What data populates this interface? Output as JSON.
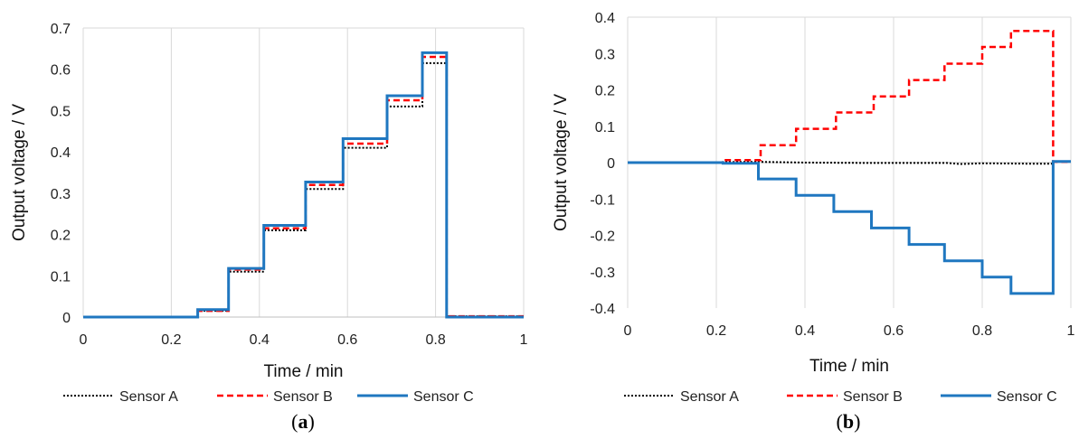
{
  "chart_data": [
    {
      "type": "line",
      "panel_label": "a",
      "xlabel": "Time  / min",
      "ylabel": "Output voltage  / V",
      "xlim": [
        0,
        1
      ],
      "ylim": [
        0,
        0.7
      ],
      "x_ticks": [
        "0",
        "0.2",
        "0.4",
        "0.6",
        "0.8",
        "1"
      ],
      "y_ticks": [
        "0",
        "0.1",
        "0.2",
        "0.3",
        "0.4",
        "0.5",
        "0.6",
        "0.7"
      ],
      "grid": "vertical",
      "legend_position": "bottom",
      "series": [
        {
          "name": "Sensor A",
          "color": "#000000",
          "style": "dotted",
          "points": [
            [
              0,
              0
            ],
            [
              0.26,
              0
            ],
            [
              0.26,
              0.015
            ],
            [
              0.33,
              0.015
            ],
            [
              0.33,
              0.11
            ],
            [
              0.41,
              0.11
            ],
            [
              0.41,
              0.21
            ],
            [
              0.505,
              0.21
            ],
            [
              0.505,
              0.31
            ],
            [
              0.59,
              0.31
            ],
            [
              0.59,
              0.41
            ],
            [
              0.69,
              0.41
            ],
            [
              0.69,
              0.51
            ],
            [
              0.77,
              0.51
            ],
            [
              0.77,
              0.615
            ],
            [
              0.825,
              0.615
            ],
            [
              0.825,
              0.002
            ],
            [
              1,
              0.002
            ]
          ]
        },
        {
          "name": "Sensor B",
          "color": "#ff0000",
          "style": "dashed",
          "points": [
            [
              0,
              0
            ],
            [
              0.26,
              0
            ],
            [
              0.26,
              0.015
            ],
            [
              0.33,
              0.015
            ],
            [
              0.33,
              0.115
            ],
            [
              0.41,
              0.115
            ],
            [
              0.41,
              0.215
            ],
            [
              0.505,
              0.215
            ],
            [
              0.505,
              0.32
            ],
            [
              0.59,
              0.32
            ],
            [
              0.59,
              0.42
            ],
            [
              0.69,
              0.42
            ],
            [
              0.69,
              0.525
            ],
            [
              0.77,
              0.525
            ],
            [
              0.77,
              0.63
            ],
            [
              0.825,
              0.63
            ],
            [
              0.825,
              0.002
            ],
            [
              1,
              0.002
            ]
          ]
        },
        {
          "name": "Sensor C",
          "color": "#1f77c0",
          "style": "solid",
          "points": [
            [
              0,
              0
            ],
            [
              0.26,
              0
            ],
            [
              0.26,
              0.018
            ],
            [
              0.33,
              0.018
            ],
            [
              0.33,
              0.118
            ],
            [
              0.41,
              0.118
            ],
            [
              0.41,
              0.222
            ],
            [
              0.505,
              0.222
            ],
            [
              0.505,
              0.327
            ],
            [
              0.59,
              0.327
            ],
            [
              0.59,
              0.432
            ],
            [
              0.69,
              0.432
            ],
            [
              0.69,
              0.536
            ],
            [
              0.77,
              0.536
            ],
            [
              0.77,
              0.64
            ],
            [
              0.825,
              0.64
            ],
            [
              0.825,
              0
            ],
            [
              1,
              0
            ]
          ]
        }
      ]
    },
    {
      "type": "line",
      "panel_label": "b",
      "xlabel": "Time / min",
      "ylabel": "Output voltage / V",
      "xlim": [
        0,
        1
      ],
      "ylim": [
        -0.4,
        0.4
      ],
      "x_ticks": [
        "0",
        "0.2",
        "0.4",
        "0.6",
        "0.8",
        "1"
      ],
      "y_ticks": [
        "0.4",
        "0.3",
        "0.2",
        "0.1",
        "0",
        "-0.1",
        "-0.2",
        "-0.3",
        "-0.4"
      ],
      "grid": "vertical",
      "legend_position": "bottom",
      "series": [
        {
          "name": "Sensor A",
          "color": "#000000",
          "style": "dotted",
          "points": [
            [
              0,
              0
            ],
            [
              0.3,
              0.002
            ],
            [
              0.4,
              0
            ],
            [
              0.55,
              -0.001
            ],
            [
              0.72,
              -0.001
            ],
            [
              0.75,
              -0.004
            ],
            [
              0.8,
              -0.002
            ],
            [
              0.9,
              -0.003
            ],
            [
              0.96,
              -0.003
            ]
          ]
        },
        {
          "name": "Sensor B",
          "color": "#ff0000",
          "style": "dashed",
          "points": [
            [
              0,
              0
            ],
            [
              0.215,
              0
            ],
            [
              0.215,
              0.007
            ],
            [
              0.3,
              0.007
            ],
            [
              0.3,
              0.048
            ],
            [
              0.38,
              0.048
            ],
            [
              0.38,
              0.093
            ],
            [
              0.47,
              0.093
            ],
            [
              0.47,
              0.138
            ],
            [
              0.555,
              0.138
            ],
            [
              0.555,
              0.182
            ],
            [
              0.635,
              0.182
            ],
            [
              0.635,
              0.227
            ],
            [
              0.715,
              0.227
            ],
            [
              0.715,
              0.272
            ],
            [
              0.8,
              0.272
            ],
            [
              0.8,
              0.318
            ],
            [
              0.865,
              0.318
            ],
            [
              0.865,
              0.362
            ],
            [
              0.96,
              0.362
            ],
            [
              0.96,
              0.002
            ],
            [
              1,
              0.002
            ]
          ]
        },
        {
          "name": "Sensor C",
          "color": "#1f77c0",
          "style": "solid",
          "points": [
            [
              0,
              0
            ],
            [
              0.215,
              0
            ],
            [
              0.215,
              -0.002
            ],
            [
              0.295,
              -0.002
            ],
            [
              0.295,
              -0.045
            ],
            [
              0.38,
              -0.045
            ],
            [
              0.38,
              -0.09
            ],
            [
              0.465,
              -0.09
            ],
            [
              0.465,
              -0.135
            ],
            [
              0.55,
              -0.135
            ],
            [
              0.55,
              -0.18
            ],
            [
              0.635,
              -0.18
            ],
            [
              0.635,
              -0.225
            ],
            [
              0.715,
              -0.225
            ],
            [
              0.715,
              -0.27
            ],
            [
              0.8,
              -0.27
            ],
            [
              0.8,
              -0.315
            ],
            [
              0.865,
              -0.315
            ],
            [
              0.865,
              -0.36
            ],
            [
              0.96,
              -0.36
            ],
            [
              0.96,
              0.003
            ],
            [
              1,
              0.003
            ]
          ]
        }
      ]
    }
  ]
}
